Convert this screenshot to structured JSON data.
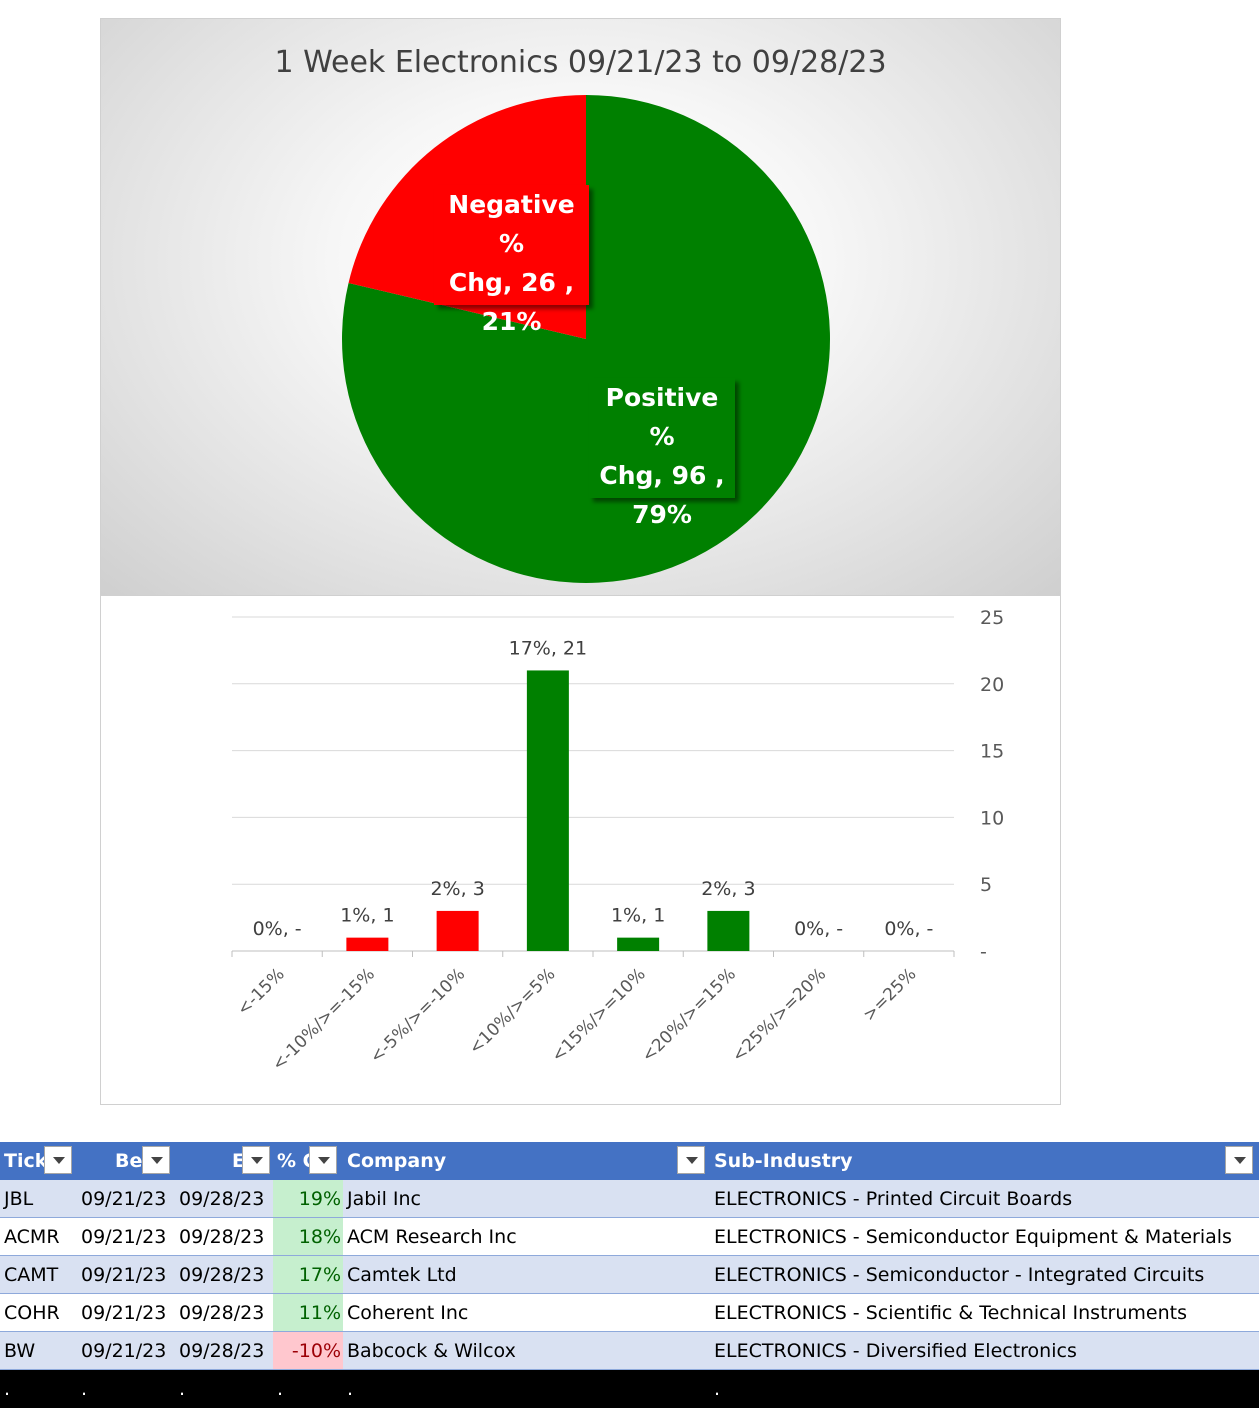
{
  "chart_data": [
    {
      "type": "pie",
      "title": "1 Week Electronics 09/21/23 to 09/28/23",
      "slices": [
        {
          "label": "Positive % Chg",
          "count": 96,
          "percent": "79%",
          "color": "#008000"
        },
        {
          "label": "Negative % Chg",
          "count": 26,
          "percent": "21%",
          "color": "#ff0000"
        }
      ],
      "data_labels": [
        {
          "key": "negative",
          "lines": [
            "Negative %",
            "Chg,  26 ,",
            "21%"
          ],
          "color": "#ff0000"
        },
        {
          "key": "positive",
          "lines": [
            "Positive %",
            "Chg,  96 ,",
            "79%"
          ],
          "color": "#008000"
        }
      ]
    },
    {
      "type": "bar",
      "categories": [
        "<-15%",
        "<-10%/>=-15%",
        "<-5%/>=-10%",
        "<10%/>=5%",
        "<15%/>=10%",
        "<20%/>=15%",
        "<25%/>=20%",
        ">=25%"
      ],
      "values": [
        0,
        1,
        3,
        21,
        1,
        3,
        0,
        0
      ],
      "colors": [
        "#ff0000",
        "#ff0000",
        "#ff0000",
        "#008000",
        "#008000",
        "#008000",
        "#008000",
        "#008000"
      ],
      "data_labels": [
        "0%,  -",
        "1%,  1",
        "2%,  3",
        "17%,  21",
        "1%,  1",
        "2%,  3",
        "0%,  -",
        "0%,  -"
      ],
      "ylim": [
        0,
        25
      ],
      "yticks": [
        0,
        5,
        10,
        15,
        20,
        25
      ],
      "ytick_labels": [
        "-",
        "5",
        "10",
        "15",
        "20",
        "25"
      ],
      "y_axis_side": "right",
      "gridlines": true
    }
  ],
  "table": {
    "headers": [
      "Tick",
      "Be",
      "E",
      "% C",
      "Company",
      "Sub-Industry"
    ],
    "rows": [
      {
        "ticker": "JBL",
        "begin": "09/21/23",
        "end": "09/28/23",
        "pct": "19%",
        "pct_sign": "pos",
        "company": "Jabil Inc",
        "sub_industry": "ELECTRONICS - Printed Circuit Boards"
      },
      {
        "ticker": "ACMR",
        "begin": "09/21/23",
        "end": "09/28/23",
        "pct": "18%",
        "pct_sign": "pos",
        "company": "ACM Research Inc",
        "sub_industry": "ELECTRONICS - Semiconductor Equipment & Materials"
      },
      {
        "ticker": "CAMT",
        "begin": "09/21/23",
        "end": "09/28/23",
        "pct": "17%",
        "pct_sign": "pos",
        "company": "Camtek Ltd",
        "sub_industry": "ELECTRONICS - Semiconductor - Integrated Circuits"
      },
      {
        "ticker": "COHR",
        "begin": "09/21/23",
        "end": "09/28/23",
        "pct": "11%",
        "pct_sign": "pos",
        "company": "Coherent Inc",
        "sub_industry": "ELECTRONICS - Scientific & Technical Instruments"
      },
      {
        "ticker": "BW",
        "begin": "09/21/23",
        "end": "09/28/23",
        "pct": "-10%",
        "pct_sign": "neg",
        "company": "Babcock & Wilcox",
        "sub_industry": "ELECTRONICS - Diversified Electronics"
      }
    ],
    "footer_row": [
      ".",
      ".",
      ".",
      ".",
      ".",
      "."
    ]
  }
}
